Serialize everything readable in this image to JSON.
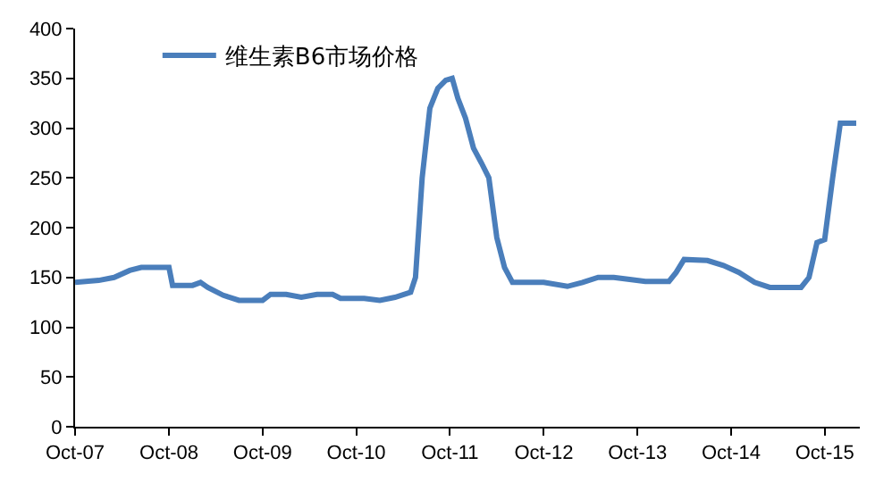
{
  "chart_data": {
    "type": "line",
    "series": [
      {
        "name": "维生素B6市场价格",
        "color": "#4a7ebb",
        "x": [
          "2007-10-01",
          "2008-01-01",
          "2008-03-01",
          "2008-05-01",
          "2008-06-15",
          "2008-10-01",
          "2008-10-15",
          "2009-01-01",
          "2009-02-01",
          "2009-03-01",
          "2009-05-01",
          "2009-07-01",
          "2009-10-01",
          "2009-11-01",
          "2010-01-01",
          "2010-03-01",
          "2010-05-01",
          "2010-07-01",
          "2010-08-01",
          "2010-11-01",
          "2011-01-01",
          "2011-03-01",
          "2011-05-01",
          "2011-05-20",
          "2011-06-15",
          "2011-07-15",
          "2011-08-15",
          "2011-09-15",
          "2011-10-10",
          "2011-11-01",
          "2011-12-01",
          "2012-01-01",
          "2012-02-01",
          "2012-03-01",
          "2012-04-01",
          "2012-05-01",
          "2012-06-01",
          "2012-07-01",
          "2012-10-01",
          "2013-01-01",
          "2013-03-01",
          "2013-05-01",
          "2013-07-01",
          "2013-09-01",
          "2013-11-01",
          "2014-02-01",
          "2014-03-01",
          "2014-04-01",
          "2014-07-01",
          "2014-09-01",
          "2014-11-01",
          "2015-01-01",
          "2015-03-01",
          "2015-07-01",
          "2015-08-01",
          "2015-09-01",
          "2015-10-01",
          "2015-11-01",
          "2015-12-01",
          "2016-02-01"
        ],
        "values": [
          145,
          147,
          150,
          157,
          160,
          160,
          142,
          142,
          145,
          140,
          132,
          127,
          127,
          133,
          133,
          130,
          133,
          133,
          129,
          129,
          127,
          130,
          135,
          150,
          250,
          320,
          340,
          348,
          350,
          330,
          310,
          280,
          265,
          250,
          190,
          160,
          145,
          145,
          145,
          141,
          145,
          150,
          150,
          148,
          146,
          146,
          155,
          168,
          167,
          162,
          155,
          145,
          140,
          140,
          150,
          185,
          188,
          250,
          305,
          305
        ]
      }
    ],
    "xlim": [
      "2007-10-01",
      "2016-02-15"
    ],
    "xticks": [
      {
        "value": "2007-10-01",
        "label": "Oct-07"
      },
      {
        "value": "2008-10-01",
        "label": "Oct-08"
      },
      {
        "value": "2009-10-01",
        "label": "Oct-09"
      },
      {
        "value": "2010-10-01",
        "label": "Oct-10"
      },
      {
        "value": "2011-10-01",
        "label": "Oct-11"
      },
      {
        "value": "2012-10-01",
        "label": "Oct-12"
      },
      {
        "value": "2013-10-01",
        "label": "Oct-13"
      },
      {
        "value": "2014-10-01",
        "label": "Oct-14"
      },
      {
        "value": "2015-10-01",
        "label": "Oct-15"
      }
    ],
    "ylim": [
      0,
      400
    ],
    "yticks": [
      0,
      50,
      100,
      150,
      200,
      250,
      300,
      350,
      400
    ],
    "legend": "top left",
    "line_style": "solid",
    "marker": "none"
  }
}
